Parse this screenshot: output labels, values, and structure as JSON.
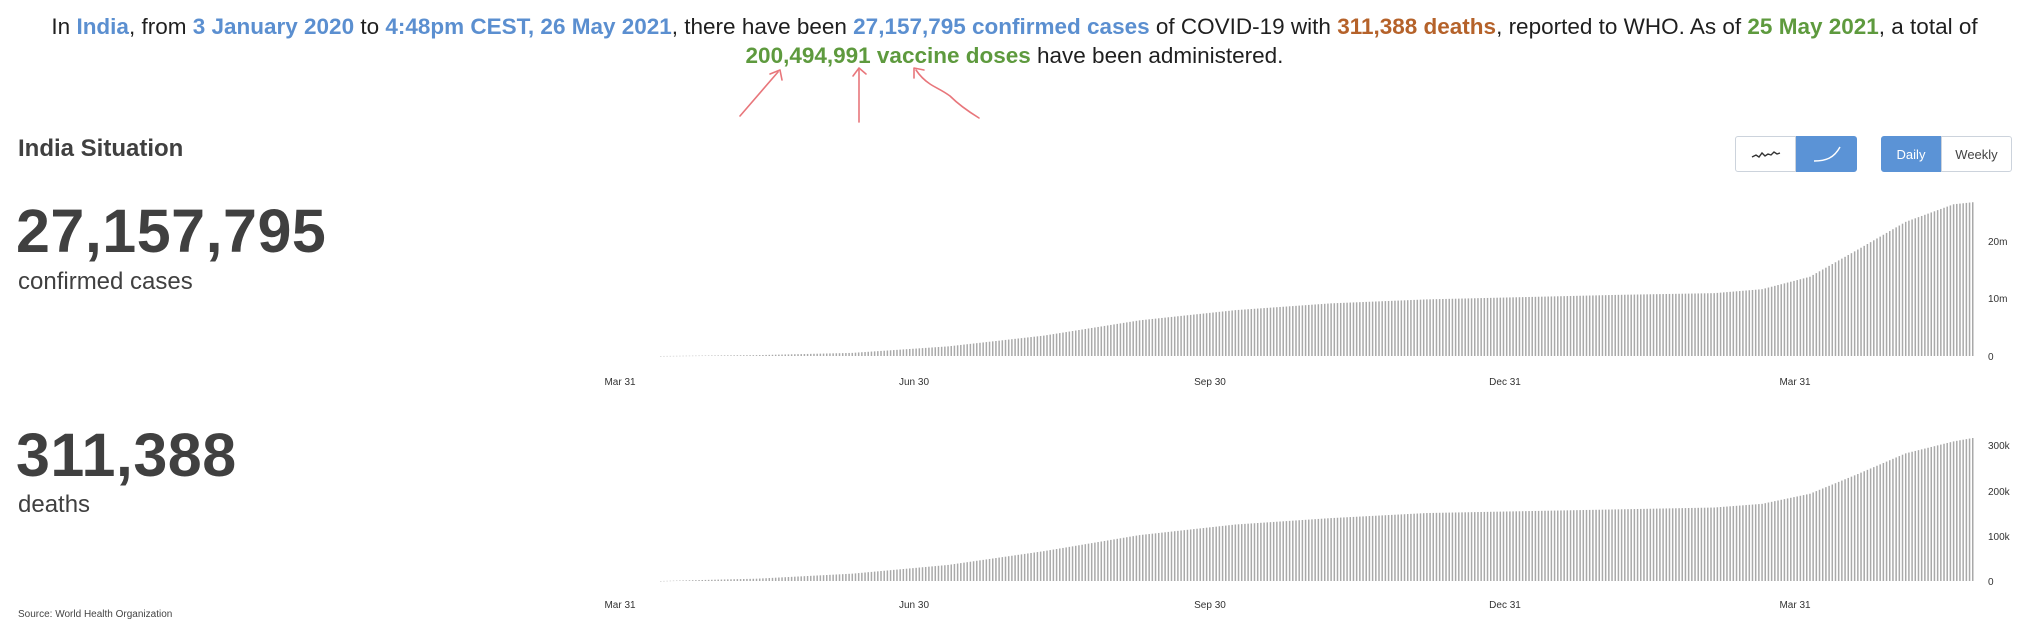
{
  "summary": {
    "p1": "In ",
    "country": "India",
    "p2": ", from ",
    "start_date": "3 January 2020",
    "p3": " to ",
    "end_time": "4:48pm CEST, 26 May 2021",
    "p4": ", there have been ",
    "confirmed_phrase": "27,157,795 confirmed cases",
    "p5": " of COVID-19 with ",
    "deaths_phrase": "311,388 deaths",
    "p6": ", reported to WHO. As of ",
    "vaccine_date": "25 May 2021",
    "p7": ", a total of ",
    "vaccine_phrase": "200,494,991 vaccine doses",
    "p8": " have been administered."
  },
  "colors": {
    "blue": "#5b8fd0",
    "orange": "#b5622a",
    "green": "#5e9a3e",
    "bars": "#a9a9a9",
    "annotation": "#e8767b"
  },
  "situation": {
    "title": "India Situation"
  },
  "controls": {
    "chart_type": [
      {
        "icon": "line-chart-icon",
        "active": false
      },
      {
        "icon": "cumulative-curve-icon",
        "active": true
      }
    ],
    "period": {
      "daily_label": "Daily",
      "weekly_label": "Weekly",
      "selected": "Daily"
    }
  },
  "cases": {
    "value": "27,157,795",
    "label": "confirmed cases"
  },
  "deaths": {
    "value": "311,388",
    "label": "deaths"
  },
  "chart_data": [
    {
      "type": "bar",
      "series": "cumulative confirmed cases",
      "x_ticks": [
        "Mar 31",
        "Jun 30",
        "Sep 30",
        "Dec 31",
        "Mar 31"
      ],
      "y_ticks": [
        "0",
        "10m",
        "20m"
      ],
      "ylim": [
        0,
        27200000
      ],
      "points": [
        [
          0,
          0
        ],
        [
          30,
          150000
        ],
        [
          60,
          550000
        ],
        [
          90,
          1700000
        ],
        [
          120,
          3600000
        ],
        [
          150,
          6300000
        ],
        [
          180,
          8100000
        ],
        [
          210,
          9300000
        ],
        [
          240,
          10000000
        ],
        [
          270,
          10400000
        ],
        [
          300,
          10800000
        ],
        [
          330,
          11100000
        ],
        [
          345,
          11800000
        ],
        [
          360,
          14000000
        ],
        [
          375,
          18800000
        ],
        [
          390,
          23700000
        ],
        [
          405,
          26800000
        ],
        [
          411,
          27157795
        ]
      ]
    },
    {
      "type": "bar",
      "series": "cumulative deaths",
      "x_ticks": [
        "Mar 31",
        "Jun 30",
        "Sep 30",
        "Dec 31",
        "Mar 31"
      ],
      "y_ticks": [
        "0",
        "100k",
        "200k",
        "300k"
      ],
      "ylim": [
        0,
        311388
      ],
      "points": [
        [
          0,
          0
        ],
        [
          30,
          5000
        ],
        [
          60,
          16000
        ],
        [
          90,
          35000
        ],
        [
          120,
          65000
        ],
        [
          150,
          100000
        ],
        [
          180,
          123000
        ],
        [
          210,
          137000
        ],
        [
          240,
          148000
        ],
        [
          270,
          152000
        ],
        [
          300,
          156000
        ],
        [
          330,
          160000
        ],
        [
          345,
          168000
        ],
        [
          360,
          190000
        ],
        [
          375,
          233000
        ],
        [
          390,
          278000
        ],
        [
          405,
          304000
        ],
        [
          411,
          311388
        ]
      ]
    }
  ],
  "source": {
    "text": "Source: World Health Organization"
  }
}
